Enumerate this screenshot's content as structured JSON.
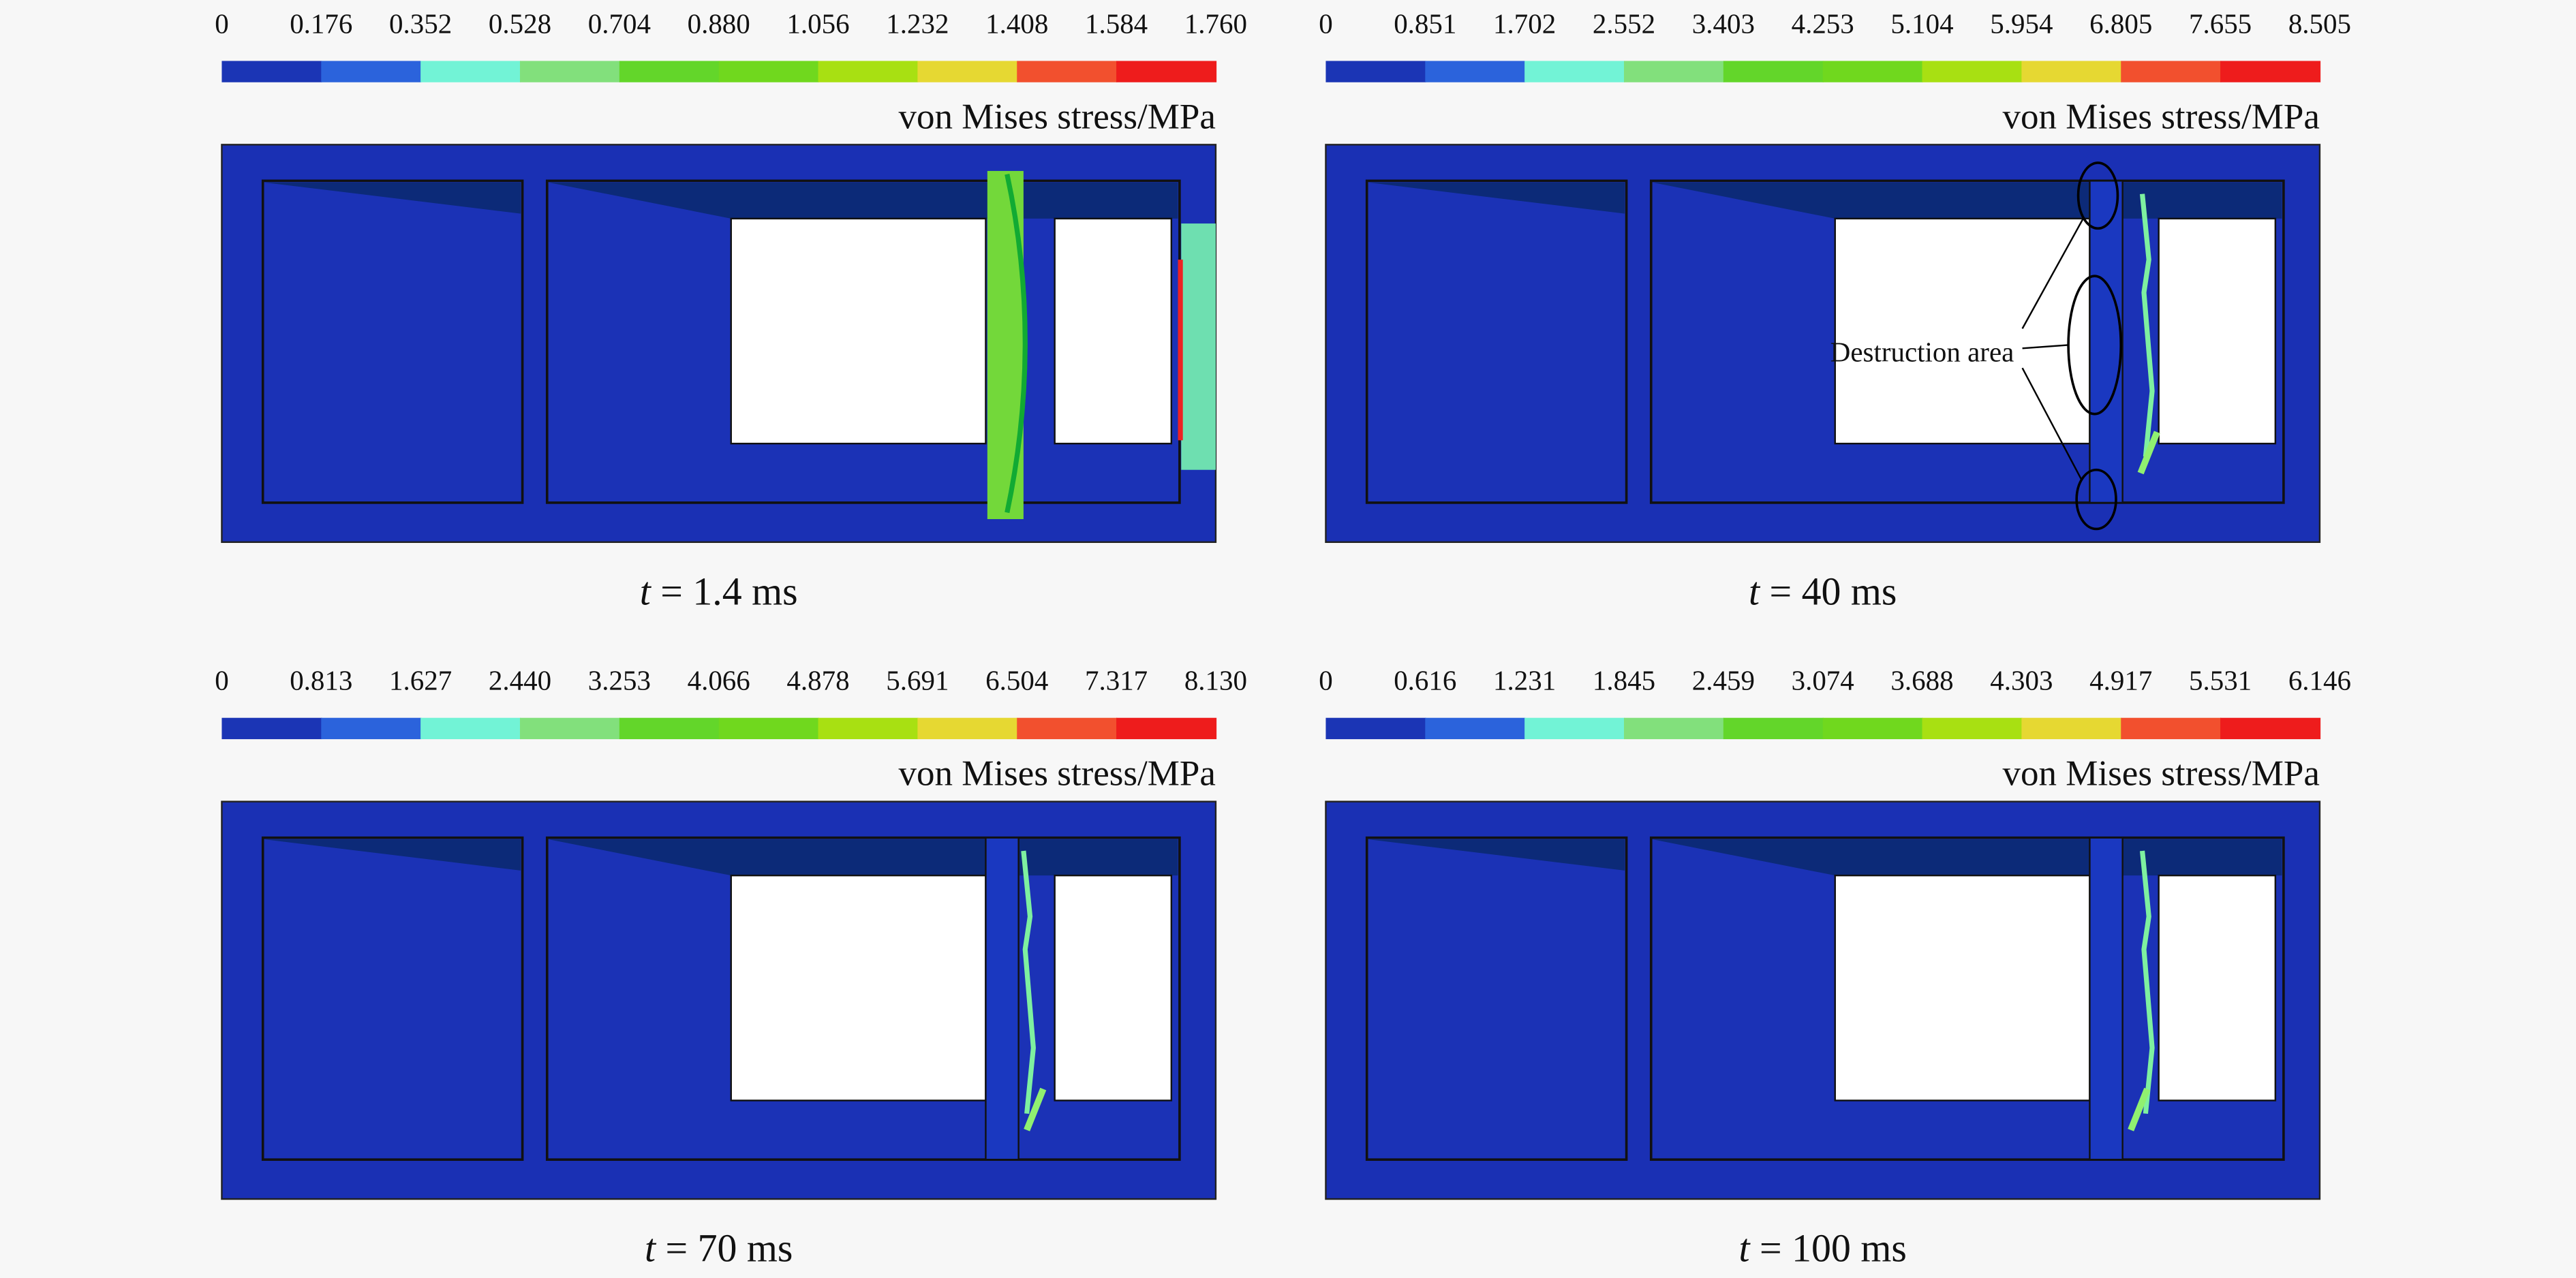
{
  "colorbar_colors": [
    "#1b35b5",
    "#2b63dc",
    "#72f3d6",
    "#82e07c",
    "#63d62a",
    "#70d81e",
    "#a8e012",
    "#e6d832",
    "#f2502e",
    "#ee1c1c"
  ],
  "panels": [
    {
      "ticks": [
        "0",
        "0.176",
        "0.352",
        "0.528",
        "0.704",
        "0.880",
        "1.056",
        "1.232",
        "1.408",
        "1.584",
        "1.760"
      ],
      "colorbar_label": "von Mises stress/MPa",
      "caption_variable": "t",
      "caption": "= 1.4 ms"
    },
    {
      "ticks": [
        "0",
        "0.851",
        "1.702",
        "2.552",
        "3.403",
        "4.253",
        "5.104",
        "5.954",
        "6.805",
        "7.655",
        "8.505"
      ],
      "colorbar_label": "von Mises stress/MPa",
      "caption_variable": "t",
      "caption": "= 40 ms",
      "annotation": "Destruction area"
    },
    {
      "ticks": [
        "0",
        "0.813",
        "1.627",
        "2.440",
        "3.253",
        "4.066",
        "4.878",
        "5.691",
        "6.504",
        "7.317",
        "8.130"
      ],
      "colorbar_label": "von Mises stress/MPa",
      "caption_variable": "t",
      "caption": "= 70 ms"
    },
    {
      "ticks": [
        "0",
        "0.616",
        "1.231",
        "1.845",
        "2.459",
        "3.074",
        "3.688",
        "4.303",
        "4.917",
        "5.531",
        "6.146"
      ],
      "colorbar_label": "von Mises stress/MPa",
      "caption_variable": "t",
      "caption": "= 100 ms"
    }
  ]
}
